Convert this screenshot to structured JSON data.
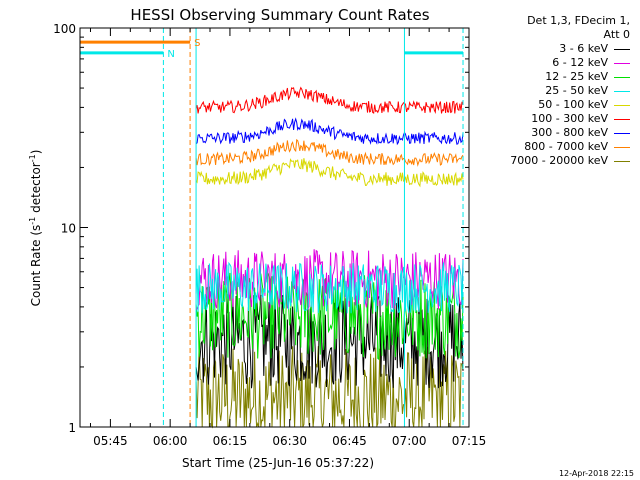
{
  "chart_data": {
    "type": "line",
    "title": "HESSI Observing Summary Count Rates",
    "xlabel": "Start Time (25-Jun-16 05:37:22)",
    "ylabel_main": "Count Rate (s",
    "ylabel_sup1": "-1",
    "ylabel_mid": " detector",
    "ylabel_sup2": "-1",
    "ylabel_end": ")",
    "yscale": "log",
    "ylim": [
      1,
      100
    ],
    "xlim_min": [
      337.37,
      435
    ],
    "x_ticks": [
      {
        "label": "05:45",
        "t": 345
      },
      {
        "label": "06:00",
        "t": 360
      },
      {
        "label": "06:15",
        "t": 375
      },
      {
        "label": "06:30",
        "t": 390
      },
      {
        "label": "06:45",
        "t": 405
      },
      {
        "label": "07:00",
        "t": 420
      },
      {
        "label": "07:15",
        "t": 435
      }
    ],
    "y_ticks": [
      {
        "label": "1",
        "v": 1
      },
      {
        "label": "10",
        "v": 10
      },
      {
        "label": "100",
        "v": 100
      }
    ],
    "legend_header": [
      "Det 1,3, FDecim 1,",
      "Att 0"
    ],
    "series": [
      {
        "name": "3 - 6 keV",
        "color": "#000000",
        "level": 2.7,
        "noise": 0.55
      },
      {
        "name": "6 - 12 keV",
        "color": "#e000e0",
        "level": 5.5,
        "noise": 0.35
      },
      {
        "name": "12 - 25 keV",
        "color": "#00e000",
        "level": 3.6,
        "noise": 0.5
      },
      {
        "name": "25 - 50 keV",
        "color": "#00e8e8",
        "level": 5.0,
        "noise": 0.3
      },
      {
        "name": "50 - 100 keV",
        "color": "#d8d800",
        "level": 17.5,
        "noise": 0.08
      },
      {
        "name": "100 - 300 keV",
        "color": "#ff0000",
        "level": 40,
        "noise": 0.07
      },
      {
        "name": "300 - 800 keV",
        "color": "#0000ff",
        "level": 28,
        "noise": 0.07
      },
      {
        "name": "800 - 7000 keV",
        "color": "#ff8000",
        "level": 22,
        "noise": 0.07
      },
      {
        "name": "7000 - 20000 keV",
        "color": "#808000",
        "level": 1.4,
        "noise": 0.6
      }
    ],
    "data_interval_min": [
      366.5,
      433.5
    ],
    "flags": [
      {
        "label": "N",
        "color": "#00e8e8",
        "segments": [
          [
            337.4,
            358.3
          ],
          [
            418.8,
            433.5
          ]
        ],
        "v": 75
      },
      {
        "label": "S",
        "color": "#ff8000",
        "segments": [
          [
            337.4,
            365.0
          ]
        ],
        "v": 85
      }
    ],
    "vlines": [
      {
        "t": 358.3,
        "color": "#00e8e8",
        "dash": true
      },
      {
        "t": 365.0,
        "color": "#ff8000",
        "dash": true
      },
      {
        "t": 366.5,
        "color": "#00e8e8",
        "dash": false
      },
      {
        "t": 418.8,
        "color": "#00e8e8",
        "dash": false
      },
      {
        "t": 433.5,
        "color": "#00e8e8",
        "dash": true
      }
    ]
  },
  "footer_date": "12-Apr-2018 22:15"
}
